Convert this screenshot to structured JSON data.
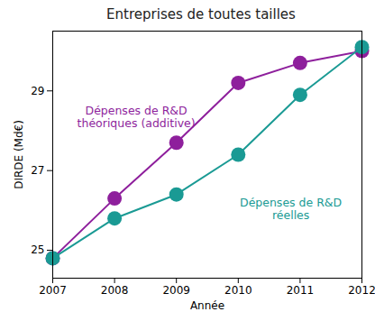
{
  "chart_data": {
    "type": "line",
    "title": "Entreprises de toutes tailles",
    "x_label": "Année",
    "y_label": "DIRDE (Md€)",
    "x": [
      2007,
      2008,
      2009,
      2010,
      2011,
      2012
    ],
    "series": [
      {
        "name": "Dépenses de R&D théoriques (additive)",
        "color": "#8e1f9c",
        "marker": "circle",
        "values": [
          24.8,
          26.3,
          27.7,
          29.2,
          29.7,
          30.0
        ]
      },
      {
        "name": "Dépenses de R&D réelles",
        "color": "#1a9a94",
        "marker": "circle",
        "values": [
          24.8,
          25.8,
          26.4,
          27.4,
          28.9,
          30.1
        ]
      }
    ],
    "xlim": [
      2007,
      2012
    ],
    "xticks": [
      2007,
      2008,
      2009,
      2010,
      2011,
      2012
    ],
    "ylim": [
      24.3,
      30.5
    ],
    "yticks": [
      25,
      27,
      29
    ],
    "grid": false
  }
}
